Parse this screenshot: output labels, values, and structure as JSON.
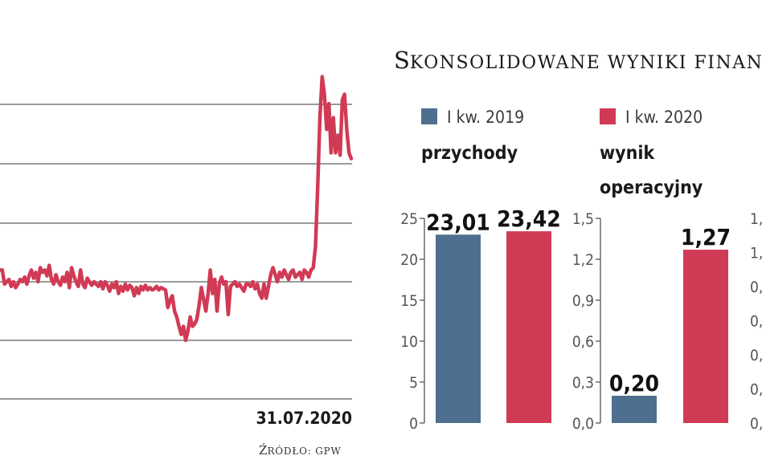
{
  "header": {
    "title_initial": "S",
    "title_rest": "KONSOLIDOWANE WYNIKI FINAN"
  },
  "source": {
    "initial": "Ź",
    "rest": "RÓDŁO: GPW"
  },
  "colors": {
    "line": "#d13a55",
    "grid": "#7a7a7a",
    "series_2019": "#4f6f8f",
    "series_2020": "#d13a55",
    "axis": "#555555"
  },
  "legend": [
    {
      "label": "I kw. 2019",
      "color": "#4f6f8f"
    },
    {
      "label": "I kw. 2020",
      "color": "#d13a55"
    }
  ],
  "chart_data": [
    {
      "type": "line",
      "title": "",
      "x_end_label": "31.07.2020",
      "grid": true,
      "series": [
        {
          "values": [
            2.1,
            2.1,
            1.98,
            2.0,
            2.02,
            1.96,
            2.0,
            1.95,
            1.98,
            2.02,
            2.0,
            2.04,
            1.98,
            2.05,
            2.1,
            2.03,
            2.08,
            2.0,
            2.12,
            2.08,
            2.1,
            2.05,
            2.14,
            2.02,
            1.98,
            2.06,
            2.0,
            1.97,
            2.04,
            2.0,
            2.08,
            1.95,
            2.12,
            2.05,
            2.0,
            1.96,
            2.1,
            1.98,
            1.95,
            2.03,
            2.0,
            1.97,
            2.0,
            1.98,
            1.96,
            2.0,
            1.94,
            2.0,
            1.97,
            1.92,
            1.98,
            1.95,
            2.0,
            1.9,
            1.96,
            1.92,
            1.98,
            1.93,
            1.97,
            1.95,
            1.88,
            1.95,
            1.9,
            1.96,
            1.93,
            1.97,
            1.93,
            1.95,
            1.93,
            1.94,
            1.96,
            1.93,
            1.95,
            1.94,
            1.93,
            1.78,
            1.84,
            1.88,
            1.75,
            1.7,
            1.62,
            1.55,
            1.62,
            1.5,
            1.58,
            1.7,
            1.62,
            1.64,
            1.68,
            1.8,
            1.95,
            1.85,
            1.75,
            1.9,
            2.1,
            1.9,
            2.02,
            1.75,
            1.98,
            2.04,
            1.98,
            2.0,
            1.72,
            1.96,
            1.98,
            2.0,
            1.96,
            1.98,
            1.95,
            1.92,
            1.98,
            1.98,
            1.96,
            2.0,
            1.94,
            1.98,
            1.9,
            1.86,
            1.98,
            1.86,
            1.96,
            2.06,
            2.12,
            2.06,
            2.0,
            2.08,
            2.04,
            2.1,
            2.06,
            2.02,
            2.08,
            2.1,
            2.04,
            2.06,
            2.08,
            2.02,
            2.1,
            2.08,
            2.04,
            2.1,
            2.12,
            2.3,
            2.8,
            3.4,
            3.75,
            3.6,
            3.3,
            3.52,
            3.1,
            3.4,
            3.1,
            3.25,
            3.08,
            3.55,
            3.6,
            3.3,
            3.1,
            3.05
          ]
        }
      ]
    },
    {
      "type": "bar",
      "title": "przychody",
      "categories": [
        "I kw. 2019",
        "I kw. 2020"
      ],
      "values": [
        23.01,
        23.42
      ],
      "value_labels": [
        "23,01",
        "23,42"
      ],
      "ylim": [
        0,
        25
      ],
      "yticks": [
        "0",
        "5",
        "10",
        "15",
        "20",
        "25"
      ]
    },
    {
      "type": "bar",
      "title": "wynik operacyjny",
      "title_lines": [
        "wynik",
        "operacyjny"
      ],
      "categories": [
        "I kw. 2019",
        "I kw. 2020"
      ],
      "values": [
        0.2,
        1.27
      ],
      "value_labels": [
        "0,20",
        "1,27"
      ],
      "ylim": [
        0,
        1.5
      ],
      "yticks": [
        "0,0",
        "0,3",
        "0,6",
        "0,9",
        "1,2",
        "1,5"
      ],
      "right_axis_ticks": [
        "0,",
        "0,",
        "0,",
        "0,",
        "0,",
        "1,",
        "1,"
      ]
    }
  ]
}
